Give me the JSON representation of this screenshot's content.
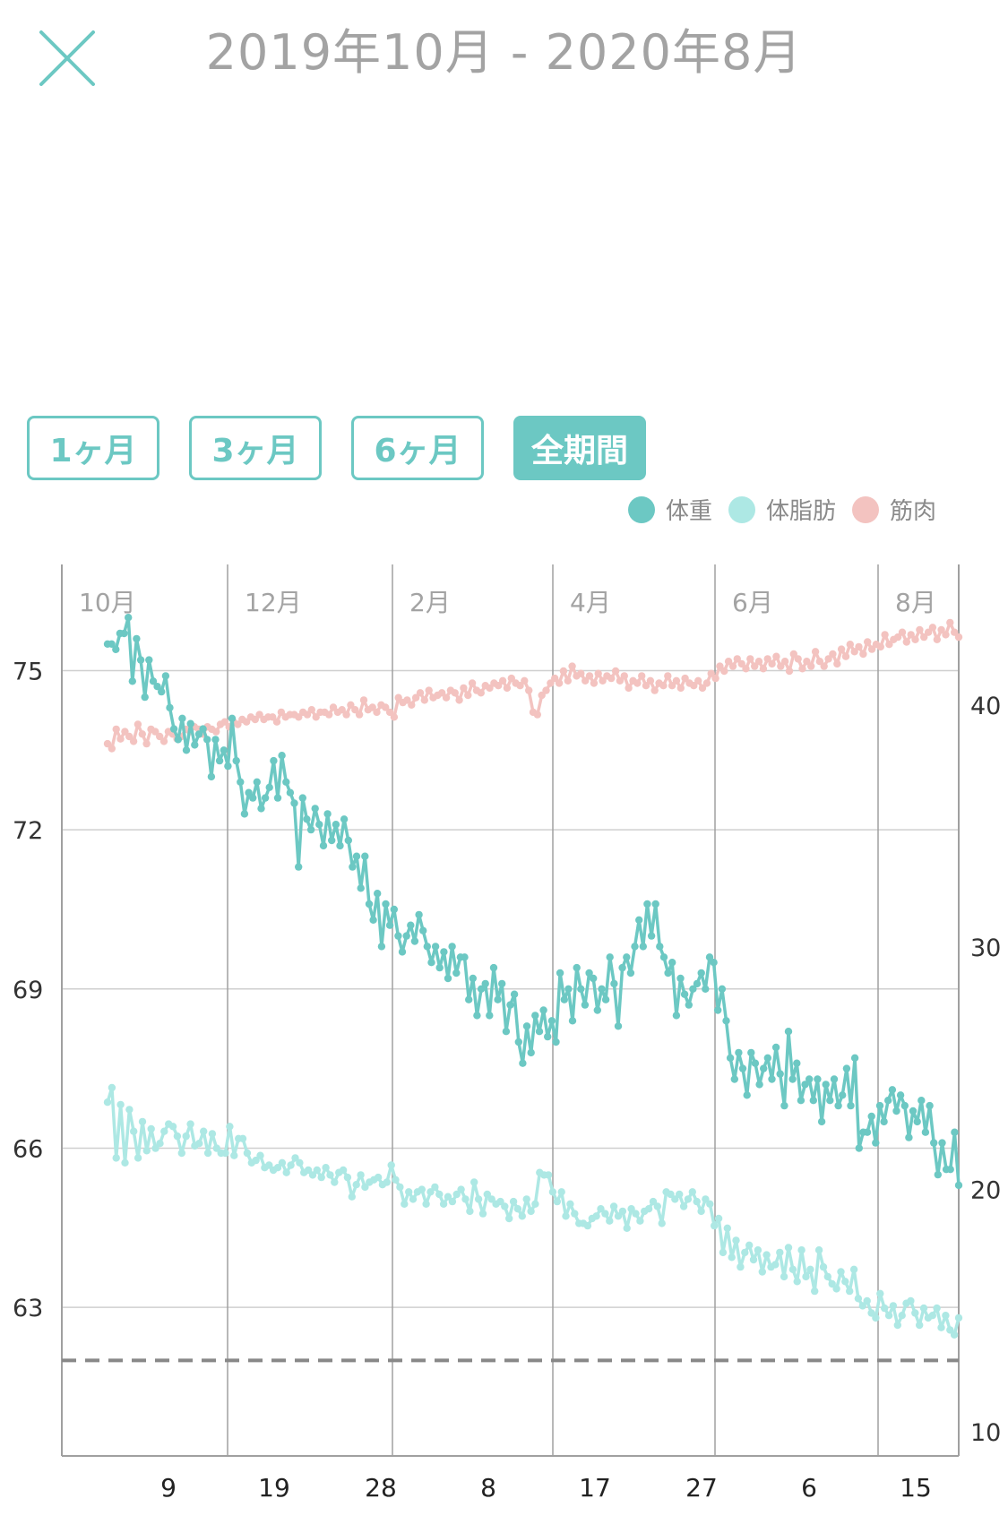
{
  "header": {
    "title": "2019年10月 - 2020年8月",
    "close_icon": "close-icon"
  },
  "range_tabs": [
    {
      "label": "1ヶ月",
      "active": false
    },
    {
      "label": "3ヶ月",
      "active": false
    },
    {
      "label": "6ヶ月",
      "active": false
    },
    {
      "label": "全期間",
      "active": true
    }
  ],
  "colors": {
    "accent": "#6cc8c3",
    "weight": "#6cc8c3",
    "body_fat": "#ade8e4",
    "muscle": "#f3c3c0",
    "grid": "#cfcfcf",
    "axis": "#a0a0a0",
    "goal": "#888888"
  },
  "chart_data": {
    "type": "line",
    "x_month_labels": [
      "10月",
      "12月",
      "2月",
      "4月",
      "6月",
      "8月"
    ],
    "x_day_labels": [
      "9",
      "19",
      "28",
      "8",
      "17",
      "27",
      "6",
      "15"
    ],
    "y_left": {
      "ticks": [
        63,
        66,
        69,
        72,
        75
      ],
      "range": [
        60.2,
        77
      ]
    },
    "y_right": {
      "ticks": [
        10,
        20,
        30,
        40
      ],
      "range": [
        9.0,
        45.8
      ]
    },
    "goal_line": {
      "axis": "left",
      "value": 62
    },
    "legend_position": "top-right",
    "grid": true,
    "series": [
      {
        "name": "体重",
        "axis": "left",
        "color": "#6cc8c3",
        "values": [
          75.5,
          75.5,
          75.4,
          75.7,
          75.7,
          76.0,
          74.8,
          75.6,
          75.2,
          74.5,
          75.2,
          74.8,
          74.7,
          74.6,
          74.9,
          74.3,
          73.9,
          73.7,
          74.1,
          73.5,
          74.0,
          73.6,
          73.8,
          73.9,
          73.7,
          73.0,
          73.7,
          73.3,
          73.5,
          73.2,
          74.1,
          73.3,
          72.9,
          72.3,
          72.7,
          72.6,
          72.9,
          72.4,
          72.6,
          72.8,
          73.3,
          72.6,
          73.4,
          72.9,
          72.7,
          72.5,
          71.3,
          72.6,
          72.2,
          72.0,
          72.4,
          72.1,
          71.7,
          72.3,
          71.8,
          72.1,
          71.7,
          72.2,
          71.8,
          71.3,
          71.5,
          70.9,
          71.5,
          70.6,
          70.3,
          70.8,
          69.8,
          70.6,
          70.2,
          70.5,
          70.0,
          69.7,
          70.0,
          70.2,
          69.9,
          70.4,
          70.1,
          69.8,
          69.5,
          69.8,
          69.4,
          69.7,
          69.2,
          69.8,
          69.3,
          69.6,
          69.6,
          68.8,
          69.2,
          68.5,
          69.0,
          69.1,
          68.5,
          69.4,
          68.8,
          69.1,
          68.2,
          68.7,
          68.9,
          68.0,
          67.6,
          68.3,
          67.8,
          68.5,
          68.2,
          68.6,
          68.1,
          68.4,
          68.0,
          69.3,
          68.8,
          69.0,
          68.4,
          69.4,
          69.0,
          68.7,
          69.3,
          69.2,
          68.6,
          69.0,
          68.8,
          69.6,
          69.1,
          68.3,
          69.4,
          69.6,
          69.3,
          69.8,
          70.3,
          69.8,
          70.6,
          70.0,
          70.6,
          69.8,
          69.6,
          69.3,
          69.5,
          68.5,
          69.2,
          68.9,
          68.7,
          69.0,
          69.1,
          69.3,
          69.0,
          69.6,
          69.5,
          68.6,
          69.0,
          68.4,
          67.7,
          67.3,
          67.8,
          67.5,
          67.0,
          67.8,
          67.6,
          67.2,
          67.5,
          67.7,
          67.3,
          67.9,
          67.4,
          66.8,
          68.2,
          67.3,
          67.6,
          66.9,
          67.2,
          67.3,
          66.9,
          67.3,
          66.5,
          67.2,
          66.9,
          67.3,
          66.8,
          67.0,
          67.5,
          66.8,
          67.7,
          66.0,
          66.3,
          66.3,
          66.6,
          66.1,
          66.8,
          66.5,
          66.9,
          67.1,
          66.7,
          67.0,
          66.8,
          66.2,
          66.7,
          66.5,
          66.9,
          66.3,
          66.8,
          66.1,
          65.5,
          66.1,
          65.6,
          65.6,
          66.3,
          65.3
        ]
      },
      {
        "name": "体脂肪",
        "axis": "right",
        "color": "#ade8e4",
        "values": [
          23.6,
          24.2,
          21.3,
          23.5,
          21.1,
          23.3,
          22.4,
          21.3,
          22.8,
          21.6,
          22.5,
          21.7,
          21.9,
          22.4,
          22.7,
          22.6,
          22.2,
          21.5,
          22.2,
          22.7,
          21.8,
          21.9,
          22.4,
          21.5,
          22.3,
          21.7,
          21.5,
          21.5,
          22.6,
          21.4,
          22.1,
          22.1,
          21.5,
          21.1,
          21.2,
          21.4,
          20.9,
          21.0,
          20.8,
          20.9,
          21.1,
          20.7,
          21.0,
          21.3,
          21.1,
          20.7,
          20.8,
          20.6,
          20.8,
          20.5,
          20.9,
          20.6,
          20.3,
          20.7,
          20.8,
          20.5,
          19.7,
          20.2,
          20.6,
          20.1,
          20.3,
          20.4,
          20.5,
          20.2,
          20.3,
          21.0,
          20.4,
          20.1,
          19.4,
          19.9,
          19.6,
          19.9,
          20.0,
          19.4,
          19.9,
          20.1,
          19.8,
          19.4,
          19.7,
          19.5,
          19.8,
          20.0,
          19.6,
          19.1,
          20.3,
          19.6,
          19.0,
          19.8,
          19.6,
          19.4,
          19.5,
          19.3,
          18.8,
          19.5,
          19.2,
          18.9,
          19.6,
          19.1,
          19.4,
          20.7,
          20.6,
          20.6,
          19.9,
          19.5,
          19.9,
          18.9,
          19.4,
          19.0,
          18.6,
          18.6,
          18.5,
          18.8,
          18.9,
          19.2,
          19.0,
          18.7,
          19.3,
          18.9,
          19.1,
          18.4,
          19.2,
          19.0,
          18.7,
          19.1,
          19.2,
          19.5,
          19.3,
          18.6,
          19.9,
          19.8,
          19.6,
          19.8,
          19.3,
          19.6,
          19.9,
          19.5,
          19.1,
          19.6,
          19.4,
          18.5,
          18.8,
          17.4,
          18.4,
          17.2,
          17.9,
          16.8,
          17.4,
          17.7,
          17.1,
          17.5,
          16.6,
          17.3,
          16.8,
          16.9,
          17.4,
          16.4,
          17.6,
          16.7,
          16.2,
          17.5,
          16.4,
          16.7,
          15.8,
          17.5,
          16.8,
          16.4,
          16.1,
          15.9,
          16.6,
          16.2,
          15.8,
          16.7,
          15.5,
          15.2,
          15.4,
          14.9,
          14.7,
          15.7,
          15.1,
          14.8,
          15.2,
          14.4,
          14.8,
          15.3,
          15.4,
          14.9,
          14.4,
          15.1,
          14.7,
          14.8,
          15.1,
          14.3,
          14.8,
          14.2,
          14.0,
          14.7
        ]
      },
      {
        "name": "筋肉",
        "axis": "right",
        "color": "#f3c3c0",
        "values": [
          38.4,
          38.2,
          39.0,
          38.6,
          38.9,
          38.7,
          38.5,
          39.2,
          38.8,
          38.4,
          39.0,
          38.9,
          38.7,
          38.5,
          38.9,
          38.8,
          38.6,
          38.7,
          39.0,
          38.9,
          39.1,
          39.0,
          38.8,
          39.1,
          39.0,
          38.9,
          39.2,
          39.3,
          39.1,
          39.3,
          39.2,
          39.4,
          39.3,
          39.5,
          39.4,
          39.6,
          39.4,
          39.5,
          39.5,
          39.3,
          39.7,
          39.5,
          39.6,
          39.6,
          39.5,
          39.7,
          39.6,
          39.8,
          39.5,
          39.7,
          39.7,
          39.6,
          39.9,
          39.7,
          39.8,
          39.6,
          40.0,
          39.8,
          39.6,
          40.2,
          39.8,
          39.9,
          39.7,
          40.0,
          39.9,
          39.7,
          39.5,
          40.3,
          40.1,
          40.2,
          40.0,
          40.3,
          40.5,
          40.2,
          40.6,
          40.3,
          40.4,
          40.5,
          40.3,
          40.6,
          40.5,
          40.2,
          40.7,
          40.4,
          40.9,
          40.6,
          40.5,
          40.8,
          40.7,
          40.9,
          40.8,
          41.0,
          40.7,
          41.1,
          40.9,
          40.8,
          41.0,
          40.6,
          39.7,
          39.6,
          40.4,
          40.6,
          40.9,
          41.1,
          40.9,
          41.4,
          41.0,
          41.6,
          41.2,
          41.3,
          41.0,
          41.2,
          40.9,
          41.3,
          41.0,
          41.2,
          41.1,
          41.4,
          41.0,
          41.2,
          40.7,
          41.0,
          40.9,
          41.2,
          40.8,
          41.0,
          40.6,
          40.9,
          40.8,
          41.2,
          40.8,
          41.0,
          40.7,
          41.1,
          40.9,
          40.8,
          41.0,
          40.7,
          40.9,
          41.3,
          41.1,
          41.6,
          41.4,
          41.8,
          41.6,
          41.9,
          41.7,
          41.5,
          41.9,
          41.6,
          41.8,
          41.5,
          41.9,
          41.7,
          42.0,
          41.6,
          41.8,
          41.4,
          42.1,
          41.9,
          41.5,
          41.8,
          41.6,
          42.2,
          41.8,
          41.6,
          41.9,
          42.1,
          41.7,
          42.3,
          42.0,
          42.5,
          42.2,
          42.4,
          42.1,
          42.6,
          42.3,
          42.5,
          42.4,
          42.9,
          42.5,
          42.7,
          42.8,
          43.0,
          42.6,
          42.9,
          42.7,
          43.1,
          42.8,
          43.0,
          43.2,
          42.7,
          43.1,
          42.9,
          43.4,
          43.0,
          42.8
        ]
      }
    ]
  }
}
